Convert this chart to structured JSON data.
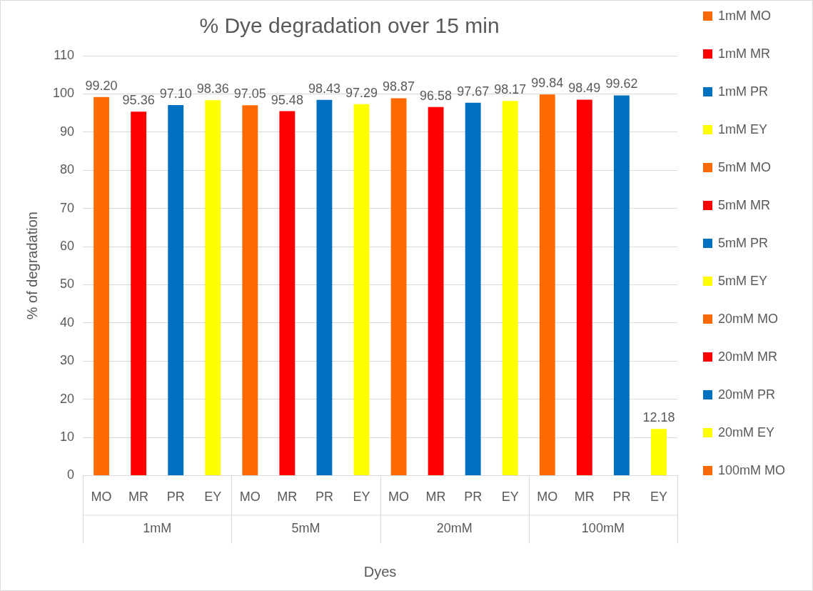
{
  "chart_data": {
    "type": "bar",
    "title": "% Dye degradation over 15 min",
    "xlabel": "Dyes",
    "ylabel": "% of degradation",
    "categories": [
      "MO",
      "MR",
      "PR",
      "EY",
      "MO",
      "MR",
      "PR",
      "EY",
      "MO",
      "MR",
      "PR",
      "EY",
      "MO",
      "MR",
      "PR",
      "EY"
    ],
    "annotations": [
      "1mM",
      "5mM",
      "20mM",
      "100mM"
    ],
    "series": [
      {
        "name": "1mM MO",
        "color": "#ff6a00",
        "values": [
          99.2,
          null,
          null,
          null,
          null,
          null,
          null,
          null,
          null,
          null,
          null,
          null,
          null,
          null,
          null,
          null
        ],
        "value_labels": [
          "99.20",
          null,
          null,
          null,
          null,
          null,
          null,
          null,
          null,
          null,
          null,
          null,
          null,
          null,
          null,
          null
        ]
      },
      {
        "name": "1mM MR",
        "color": "#ff0000",
        "values": [
          null,
          95.36,
          null,
          null,
          null,
          null,
          null,
          null,
          null,
          null,
          null,
          null,
          null,
          null,
          null,
          null
        ],
        "value_labels": [
          null,
          "95.36",
          null,
          null,
          null,
          null,
          null,
          null,
          null,
          null,
          null,
          null,
          null,
          null,
          null,
          null
        ]
      },
      {
        "name": "1mM PR",
        "color": "#0070c0",
        "values": [
          null,
          null,
          97.1,
          null,
          null,
          null,
          null,
          null,
          null,
          null,
          null,
          null,
          null,
          null,
          null,
          null
        ],
        "value_labels": [
          null,
          null,
          "97.10",
          null,
          null,
          null,
          null,
          null,
          null,
          null,
          null,
          null,
          null,
          null,
          null,
          null
        ]
      },
      {
        "name": "1mM EY",
        "color": "#ffff00",
        "values": [
          null,
          null,
          null,
          98.36,
          null,
          null,
          null,
          null,
          null,
          null,
          null,
          null,
          null,
          null,
          null,
          null
        ],
        "value_labels": [
          null,
          null,
          null,
          "98.36",
          null,
          null,
          null,
          null,
          null,
          null,
          null,
          null,
          null,
          null,
          null,
          null
        ]
      },
      {
        "name": "5mM MO",
        "color": "#ff6a00",
        "values": [
          null,
          null,
          null,
          null,
          97.05,
          null,
          null,
          null,
          null,
          null,
          null,
          null,
          null,
          null,
          null,
          null
        ],
        "value_labels": [
          null,
          null,
          null,
          null,
          "97.05",
          null,
          null,
          null,
          null,
          null,
          null,
          null,
          null,
          null,
          null,
          null
        ]
      },
      {
        "name": "5mM MR",
        "color": "#ff0000",
        "values": [
          null,
          null,
          null,
          null,
          null,
          95.48,
          null,
          null,
          null,
          null,
          null,
          null,
          null,
          null,
          null,
          null
        ],
        "value_labels": [
          null,
          null,
          null,
          null,
          null,
          "95.48",
          null,
          null,
          null,
          null,
          null,
          null,
          null,
          null,
          null,
          null
        ]
      },
      {
        "name": "5mM PR",
        "color": "#0070c0",
        "values": [
          null,
          null,
          null,
          null,
          null,
          null,
          98.43,
          null,
          null,
          null,
          null,
          null,
          null,
          null,
          null,
          null
        ],
        "value_labels": [
          null,
          null,
          null,
          null,
          null,
          null,
          "98.43",
          null,
          null,
          null,
          null,
          null,
          null,
          null,
          null,
          null
        ]
      },
      {
        "name": "5mM EY",
        "color": "#ffff00",
        "values": [
          null,
          null,
          null,
          null,
          null,
          null,
          null,
          97.29,
          null,
          null,
          null,
          null,
          null,
          null,
          null,
          null
        ],
        "value_labels": [
          null,
          null,
          null,
          null,
          null,
          null,
          null,
          "97.29",
          null,
          null,
          null,
          null,
          null,
          null,
          null,
          null
        ]
      },
      {
        "name": "20mM MO",
        "color": "#ff6a00",
        "values": [
          null,
          null,
          null,
          null,
          null,
          null,
          null,
          null,
          98.87,
          null,
          null,
          null,
          null,
          null,
          null,
          null
        ],
        "value_labels": [
          null,
          null,
          null,
          null,
          null,
          null,
          null,
          null,
          "98.87",
          null,
          null,
          null,
          null,
          null,
          null,
          null
        ]
      },
      {
        "name": "20mM MR",
        "color": "#ff0000",
        "values": [
          null,
          null,
          null,
          null,
          null,
          null,
          null,
          null,
          null,
          96.58,
          null,
          null,
          null,
          null,
          null,
          null
        ],
        "value_labels": [
          null,
          null,
          null,
          null,
          null,
          null,
          null,
          null,
          null,
          "96.58",
          null,
          null,
          null,
          null,
          null,
          null
        ]
      },
      {
        "name": "20mM PR",
        "color": "#0070c0",
        "values": [
          null,
          null,
          null,
          null,
          null,
          null,
          null,
          null,
          null,
          null,
          97.67,
          null,
          null,
          null,
          null,
          null
        ],
        "value_labels": [
          null,
          null,
          null,
          null,
          null,
          null,
          null,
          null,
          null,
          null,
          "97.67",
          null,
          null,
          null,
          null,
          null
        ]
      },
      {
        "name": "20mM EY",
        "color": "#ffff00",
        "values": [
          null,
          null,
          null,
          null,
          null,
          null,
          null,
          null,
          null,
          null,
          null,
          98.17,
          null,
          null,
          null,
          null
        ],
        "value_labels": [
          null,
          null,
          null,
          null,
          null,
          null,
          null,
          null,
          null,
          null,
          null,
          "98.17",
          null,
          null,
          null,
          null
        ]
      },
      {
        "name": "100mM MO",
        "color": "#ff6a00",
        "values": [
          null,
          null,
          null,
          null,
          null,
          null,
          null,
          null,
          null,
          null,
          null,
          null,
          99.84,
          null,
          null,
          null
        ],
        "value_labels": [
          null,
          null,
          null,
          null,
          null,
          null,
          null,
          null,
          null,
          null,
          null,
          null,
          "99.84",
          null,
          null,
          null
        ]
      },
      {
        "color": "#ff0000",
        "values": [
          null,
          null,
          null,
          null,
          null,
          null,
          null,
          null,
          null,
          null,
          null,
          null,
          null,
          98.49,
          null,
          null
        ],
        "value_labels": [
          null,
          null,
          null,
          null,
          null,
          null,
          null,
          null,
          null,
          null,
          null,
          null,
          null,
          "98.49",
          null,
          null
        ]
      },
      {
        "color": "#0070c0",
        "values": [
          null,
          null,
          null,
          null,
          null,
          null,
          null,
          null,
          null,
          null,
          null,
          null,
          null,
          null,
          99.62,
          null
        ],
        "value_labels": [
          null,
          null,
          null,
          null,
          null,
          null,
          null,
          null,
          null,
          null,
          null,
          null,
          null,
          null,
          "99.62",
          null
        ]
      },
      {
        "color": "#ffff00",
        "values": [
          null,
          null,
          null,
          null,
          null,
          null,
          null,
          null,
          null,
          null,
          null,
          null,
          null,
          null,
          null,
          12.18
        ],
        "value_labels": [
          null,
          null,
          null,
          null,
          null,
          null,
          null,
          null,
          null,
          null,
          null,
          null,
          null,
          null,
          null,
          "12.18"
        ]
      }
    ],
    "ylim": [
      0,
      110
    ],
    "yticks": [
      0,
      10,
      20,
      30,
      40,
      50,
      60,
      70,
      80,
      90,
      100,
      110
    ],
    "grid": "y",
    "legend": "right"
  }
}
